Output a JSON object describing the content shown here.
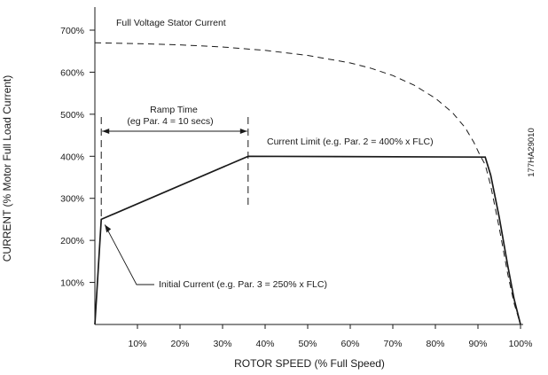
{
  "chart_data": {
    "type": "line",
    "xlabel": "ROTOR SPEED (% Full Speed)",
    "ylabel": "CURRENT (% Motor Full Load Current)",
    "xlim": [
      0,
      100
    ],
    "ylim": [
      0,
      750
    ],
    "x_ticks": [
      10,
      20,
      30,
      40,
      50,
      60,
      70,
      80,
      90,
      100
    ],
    "x_tick_labels": [
      "10%",
      "20%",
      "30%",
      "40%",
      "50%",
      "60%",
      "70%",
      "80%",
      "90%",
      "100%"
    ],
    "y_ticks": [
      100,
      200,
      300,
      400,
      500,
      600,
      700
    ],
    "y_tick_labels": [
      "100%",
      "200%",
      "300%",
      "400%",
      "500%",
      "600%",
      "700%"
    ],
    "grid": false,
    "series": [
      {
        "name": "Full Voltage Stator Current",
        "style": "dashed",
        "x": [
          0,
          10,
          20,
          30,
          40,
          50,
          60,
          65,
          70,
          75,
          80,
          84,
          87,
          89,
          90.5,
          91.7,
          93,
          95,
          97,
          98.5,
          100
        ],
        "y": [
          670,
          668,
          665,
          660,
          652,
          640,
          622,
          609,
          592,
          569,
          538,
          504,
          468,
          434,
          402,
          380,
          330,
          230,
          120,
          50,
          0
        ]
      },
      {
        "name": "Current Limit (e.g. Par. 2 = 400% x FLC)",
        "style": "solid",
        "x": [
          0,
          1.5,
          36,
          91.7,
          93,
          95,
          97,
          98.5,
          100
        ],
        "y": [
          0,
          250,
          400,
          398,
          355,
          255,
          140,
          60,
          0
        ]
      }
    ],
    "ramp_time": {
      "start_x": 1.5,
      "end_x": 36
    },
    "annotations": {
      "full_voltage_label": "Full Voltage Stator Current",
      "ramp_time_title": "Ramp Time",
      "ramp_time_detail": "(eg Par. 4 = 10 secs)",
      "current_limit_label": "Current Limit (e.g. Par. 2 = 400% x FLC)",
      "initial_current_label": "Initial Current (e.g. Par. 3 = 250% x FLC)",
      "figure_code": "177HA29010"
    }
  }
}
